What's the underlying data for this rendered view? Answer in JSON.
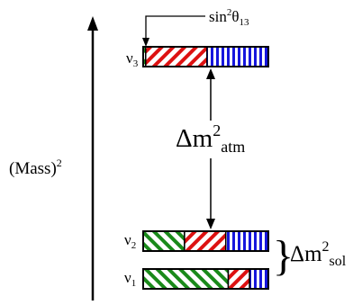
{
  "mass_axis_label": {
    "base": "(Mass)",
    "sup": "2"
  },
  "states": [
    {
      "name": "ν",
      "sub": "3",
      "fractions": {
        "electron": 0.02,
        "muon": 0.49,
        "tau": 0.49
      }
    },
    {
      "name": "ν",
      "sub": "2",
      "fractions": {
        "electron": 0.33,
        "muon": 0.33,
        "tau": 0.34
      }
    },
    {
      "name": "ν",
      "sub": "1",
      "fractions": {
        "electron": 0.68,
        "muon": 0.17,
        "tau": 0.15
      }
    }
  ],
  "theta_label": {
    "base": "sin",
    "sup": "2",
    "theta": "θ",
    "sub": "13"
  },
  "atm_label": {
    "delta": "Δm",
    "sup": "2",
    "sub": "atm"
  },
  "sol_label": {
    "brace": "}",
    "delta": "Δm",
    "sup": "2",
    "sub": "sol"
  },
  "colors": {
    "electron": "#1a8a1a",
    "muon": "#dd1111",
    "tau": "#1616dd",
    "outline": "#000000"
  }
}
